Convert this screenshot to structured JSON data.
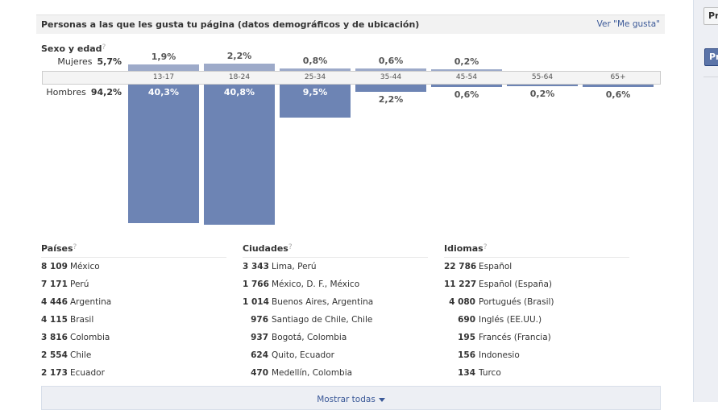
{
  "header": {
    "title": "Personas a las que les gusta tu página (datos demográficos y de ubicación)",
    "link": "Ver \"Me gusta\""
  },
  "sidebar": {
    "button1": "Pr",
    "button2": "Pr"
  },
  "gender_age": {
    "title": "Sexo y edad",
    "help": "?",
    "female_label": "Mujeres",
    "female_total": "5,7%",
    "male_label": "Hombres",
    "male_total": "94,2%"
  },
  "chart_data": {
    "type": "bar",
    "title": "Sexo y edad",
    "categories": [
      "13-17",
      "18-24",
      "25-34",
      "35-44",
      "45-54",
      "55-64",
      "65+"
    ],
    "series": [
      {
        "name": "Mujeres",
        "values": [
          1.9,
          2.2,
          0.8,
          0.6,
          0.2,
          null,
          null
        ],
        "labels": [
          "1,9%",
          "2,2%",
          "0,8%",
          "0,6%",
          "0,2%",
          "",
          ""
        ],
        "color": "#9daac9"
      },
      {
        "name": "Hombres",
        "values": [
          40.3,
          40.8,
          9.5,
          2.2,
          0.6,
          0.2,
          0.6
        ],
        "labels": [
          "40,3%",
          "40,8%",
          "9,5%",
          "2,2%",
          "0,6%",
          "0,2%",
          "0,6%"
        ],
        "color": "#6d84b4"
      }
    ]
  },
  "countries": {
    "title": "Países",
    "help": "?",
    "items": [
      {
        "n": "8 109",
        "l": "México"
      },
      {
        "n": "7 171",
        "l": "Perú"
      },
      {
        "n": "4 446",
        "l": "Argentina"
      },
      {
        "n": "4 115",
        "l": "Brasil"
      },
      {
        "n": "3 816",
        "l": "Colombia"
      },
      {
        "n": "2 554",
        "l": "Chile"
      },
      {
        "n": "2 173",
        "l": "Ecuador"
      }
    ]
  },
  "cities": {
    "title": "Ciudades",
    "help": "?",
    "items": [
      {
        "n": "3 343",
        "l": "Lima, Perú"
      },
      {
        "n": "1 766",
        "l": "México, D. F., México"
      },
      {
        "n": "1 014",
        "l": "Buenos Aires, Argentina"
      },
      {
        "n": "976",
        "l": "Santiago de Chile, Chile"
      },
      {
        "n": "937",
        "l": "Bogotá, Colombia"
      },
      {
        "n": "624",
        "l": "Quito, Ecuador"
      },
      {
        "n": "470",
        "l": "Medellín, Colombia"
      }
    ]
  },
  "languages": {
    "title": "Idiomas",
    "help": "?",
    "items": [
      {
        "n": "22 786",
        "l": "Español"
      },
      {
        "n": "11 227",
        "l": "Español (España)"
      },
      {
        "n": "4 080",
        "l": "Portugués (Brasil)"
      },
      {
        "n": "690",
        "l": "Inglés (EE.UU.)"
      },
      {
        "n": "195",
        "l": "Francés (Francia)"
      },
      {
        "n": "156",
        "l": "Indonesio"
      },
      {
        "n": "134",
        "l": "Turco"
      }
    ]
  },
  "show_all": "Mostrar todas"
}
